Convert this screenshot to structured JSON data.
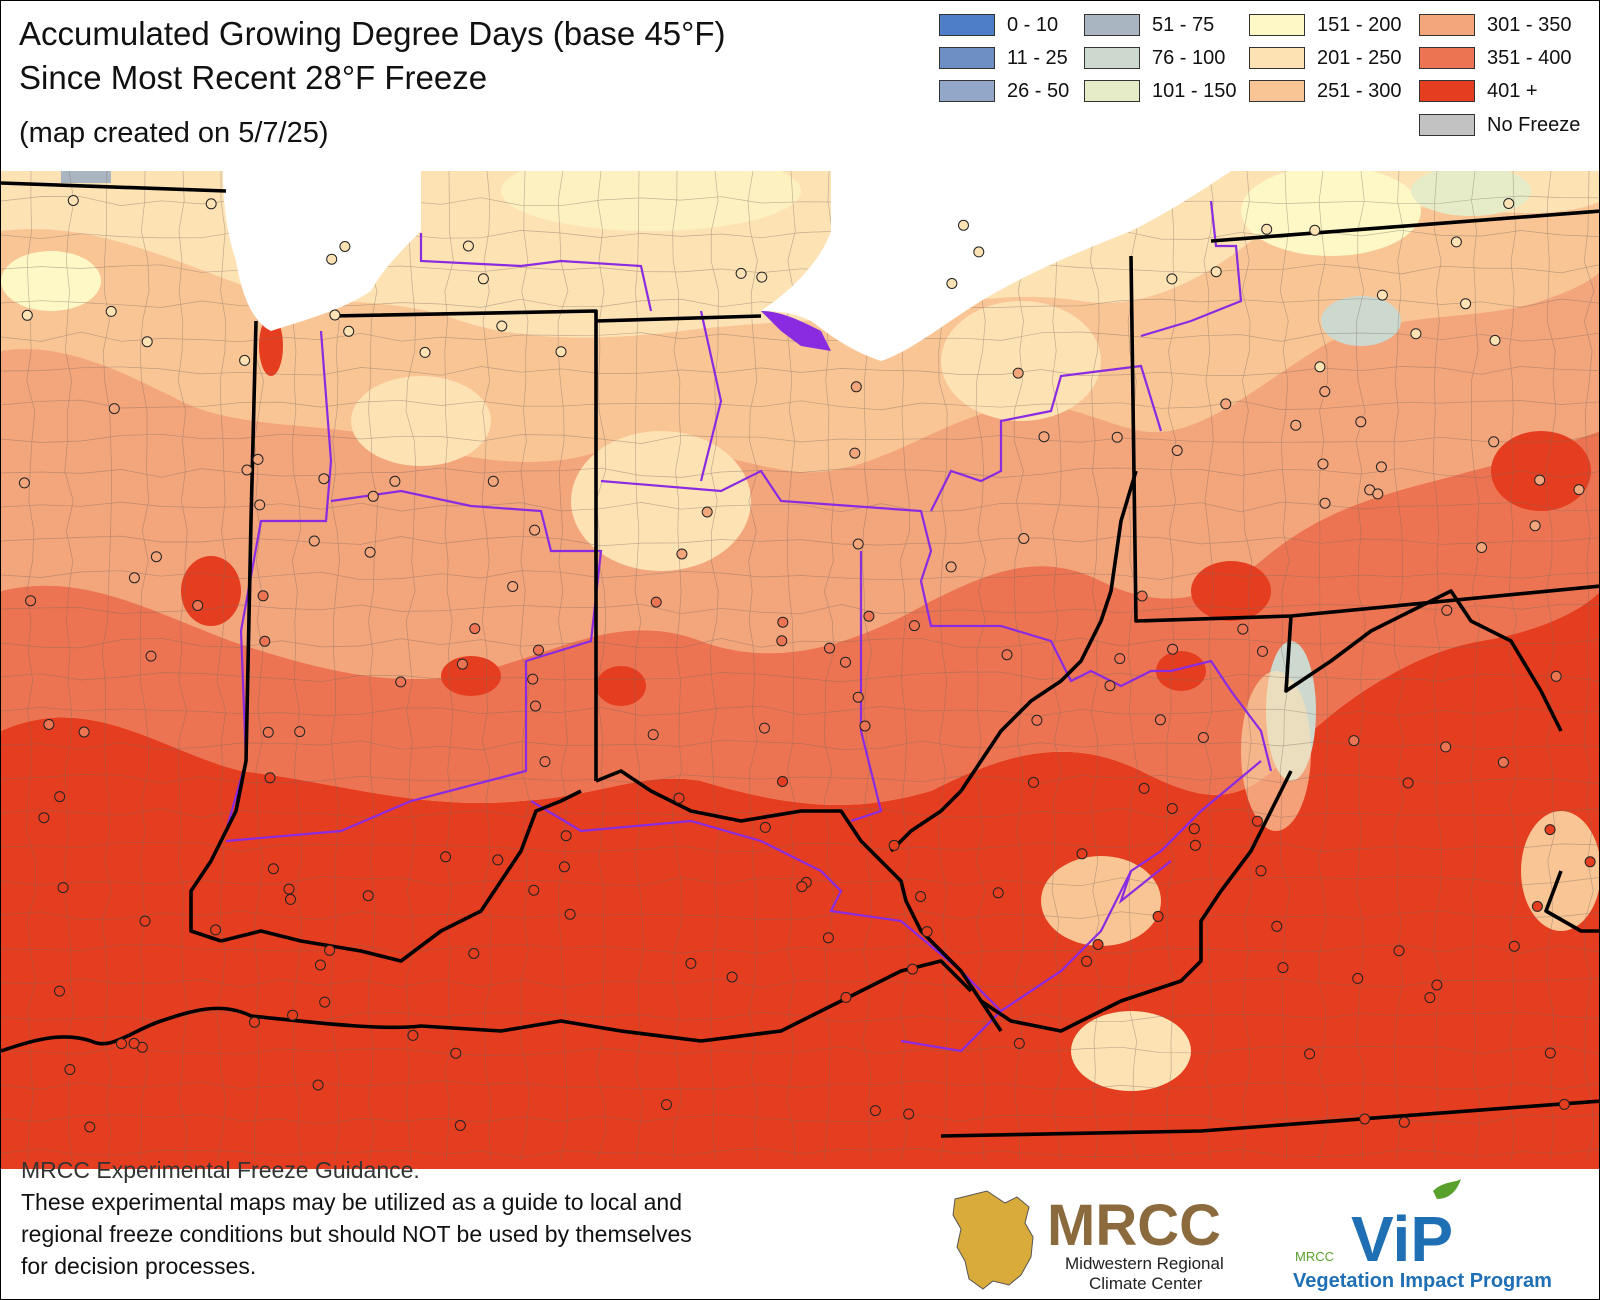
{
  "title_line1": "Accumulated Growing Degree Days (base 45°F)",
  "title_line2": "Since Most Recent 28°F Freeze",
  "created_note": "(map created on 5/7/25)",
  "legend": [
    {
      "label": "0 - 10",
      "color": "#4f7ec9"
    },
    {
      "label": "11 - 25",
      "color": "#6e8fc4"
    },
    {
      "label": "26 - 50",
      "color": "#93a8c8"
    },
    {
      "label": "51 - 75",
      "color": "#a9b6c2"
    },
    {
      "label": "76 - 100",
      "color": "#cdd8cf"
    },
    {
      "label": "101 - 150",
      "color": "#e7ecc8"
    },
    {
      "label": "151 - 200",
      "color": "#fdf8c6"
    },
    {
      "label": "201 - 250",
      "color": "#fde2b4"
    },
    {
      "label": "251 - 300",
      "color": "#f9c595"
    },
    {
      "label": "301 - 350",
      "color": "#f3a57c"
    },
    {
      "label": "351 - 400",
      "color": "#ec7452"
    },
    {
      "label": "401 +",
      "color": "#e53d1f"
    },
    {
      "label": "No Freeze",
      "color": "#c2c2c2"
    }
  ],
  "disclaimer": {
    "heading": "MRCC Experimental Freeze Guidance.",
    "line1": "These experimental maps may be utilized as a guide to local and",
    "line2": "regional freeze conditions but should NOT be used by themselves",
    "line3": "for decision processes."
  },
  "logos": {
    "mrcc_name": "MRCC",
    "mrcc_sub1": "Midwestern Regional",
    "mrcc_sub2": "Climate Center",
    "vip_small": "MRCC",
    "vip_name": "ViP",
    "vip_sub": "Vegetation Impact Program"
  },
  "colors": {
    "lake": "#ffffff",
    "state_border": "#000000",
    "climate_division_border": "#8a2be2",
    "county_border": "#7a6a60",
    "station_fill": "#f4a070",
    "mrcc_brown": "#8b6a3e",
    "vip_blue": "#1f6fb5",
    "vip_green": "#5aa02c"
  }
}
